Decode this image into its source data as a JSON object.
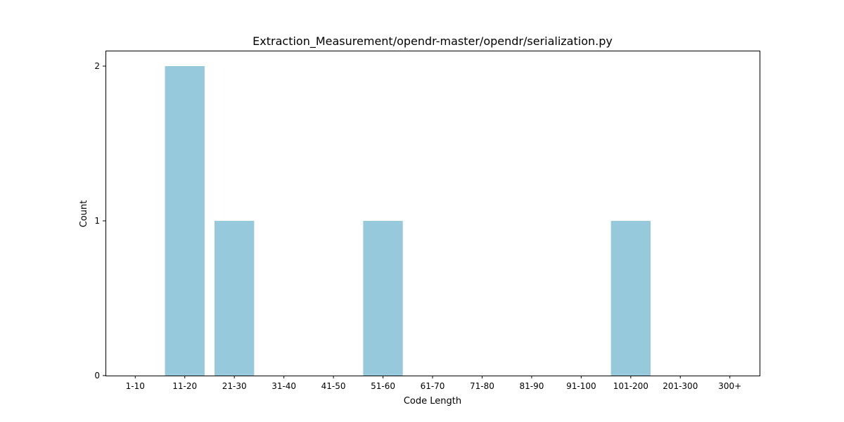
{
  "chart_data": {
    "type": "bar",
    "title": "Extraction_Measurement/opendr-master/opendr/serialization.py",
    "xlabel": "Code Length",
    "ylabel": "Count",
    "categories": [
      "1-10",
      "11-20",
      "21-30",
      "31-40",
      "41-50",
      "51-60",
      "61-70",
      "71-80",
      "81-90",
      "91-100",
      "101-200",
      "201-300",
      "300+"
    ],
    "values": [
      0,
      2,
      1,
      0,
      0,
      1,
      0,
      0,
      0,
      0,
      1,
      0,
      0
    ],
    "ylim": [
      0,
      2.1
    ],
    "yticks": [
      0,
      1,
      2
    ],
    "bar_color": "#96c9dc",
    "grid": false,
    "legend": "none"
  }
}
